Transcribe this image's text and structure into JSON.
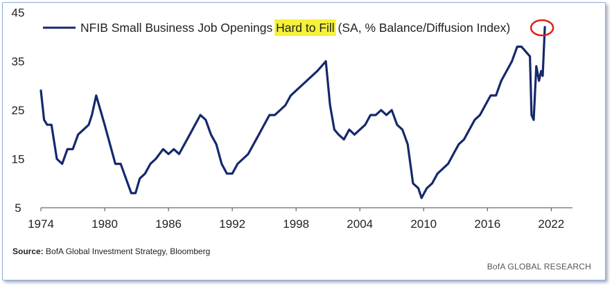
{
  "chart_data": {
    "type": "line",
    "legend": {
      "series_name_pre": "NFIB Small Business Job Openings ",
      "series_name_highlight": "Hard to Fill",
      "series_name_post": " (SA, % Balance/Diffusion Index)",
      "position": "top-left"
    },
    "line_color": "#15296b",
    "highlight_color": "#f5f23a",
    "circle_color": "#e0201b",
    "xlim": [
      1974,
      2024
    ],
    "ylim": [
      5,
      45
    ],
    "x_ticks": [
      1974,
      1980,
      1986,
      1992,
      1998,
      2004,
      2010,
      2016,
      2022
    ],
    "y_ticks": [
      5,
      15,
      25,
      35,
      45
    ],
    "grid": false,
    "annotation": {
      "type": "circle",
      "x": 2021.4,
      "y": 42
    },
    "series": [
      {
        "name": "NFIB Small Business Job Openings Hard to Fill (SA, % Balance/Diffusion Index)",
        "x": [
          1974.0,
          1974.3,
          1974.6,
          1975.0,
          1975.5,
          1976.0,
          1976.5,
          1977.0,
          1977.5,
          1978.0,
          1978.5,
          1978.8,
          1979.2,
          1979.6,
          1980.0,
          1980.5,
          1981.0,
          1981.5,
          1982.0,
          1982.5,
          1982.9,
          1983.3,
          1983.8,
          1984.3,
          1984.8,
          1985.5,
          1986.0,
          1986.5,
          1987.0,
          1987.5,
          1988.0,
          1988.5,
          1989.0,
          1989.5,
          1990.0,
          1990.5,
          1991.0,
          1991.5,
          1992.0,
          1992.5,
          1993.0,
          1993.5,
          1994.0,
          1994.5,
          1995.0,
          1995.5,
          1996.0,
          1996.5,
          1997.0,
          1997.5,
          1998.0,
          1998.5,
          1999.0,
          1999.5,
          2000.0,
          2000.4,
          2000.8,
          2001.2,
          2001.6,
          2002.0,
          2002.5,
          2003.0,
          2003.5,
          2004.0,
          2004.5,
          2005.0,
          2005.5,
          2006.0,
          2006.5,
          2007.0,
          2007.5,
          2008.0,
          2008.5,
          2009.0,
          2009.5,
          2009.8,
          2010.3,
          2010.8,
          2011.3,
          2011.8,
          2012.3,
          2012.8,
          2013.3,
          2013.8,
          2014.3,
          2014.8,
          2015.3,
          2015.8,
          2016.3,
          2016.8,
          2017.3,
          2017.8,
          2018.3,
          2018.8,
          2019.2,
          2019.6,
          2020.0,
          2020.15,
          2020.35,
          2020.6,
          2020.85,
          2021.05,
          2021.2,
          2021.4
        ],
        "y": [
          29,
          23,
          22,
          22,
          15,
          14,
          17,
          17,
          20,
          21,
          22,
          24,
          28,
          25,
          22,
          18,
          14,
          14,
          11,
          8,
          8,
          11,
          12,
          14,
          15,
          17,
          16,
          17,
          16,
          18,
          20,
          22,
          24,
          23,
          20,
          18,
          14,
          12,
          12,
          14,
          15,
          16,
          18,
          20,
          22,
          24,
          24,
          25,
          26,
          28,
          29,
          30,
          31,
          32,
          33,
          34,
          35,
          26,
          21,
          20,
          19,
          21,
          20,
          21,
          22,
          24,
          24,
          25,
          24,
          25,
          22,
          21,
          18,
          10,
          9,
          7,
          9,
          10,
          12,
          13,
          14,
          16,
          18,
          19,
          21,
          23,
          24,
          26,
          28,
          28,
          31,
          33,
          35,
          38,
          38,
          37,
          36,
          24,
          23,
          34,
          31,
          33,
          32,
          42
        ]
      }
    ]
  },
  "source": {
    "label": "Source:",
    "text": "BofA Global Investment Strategy, Bloomberg"
  },
  "brand": "BofA GLOBAL RESEARCH"
}
